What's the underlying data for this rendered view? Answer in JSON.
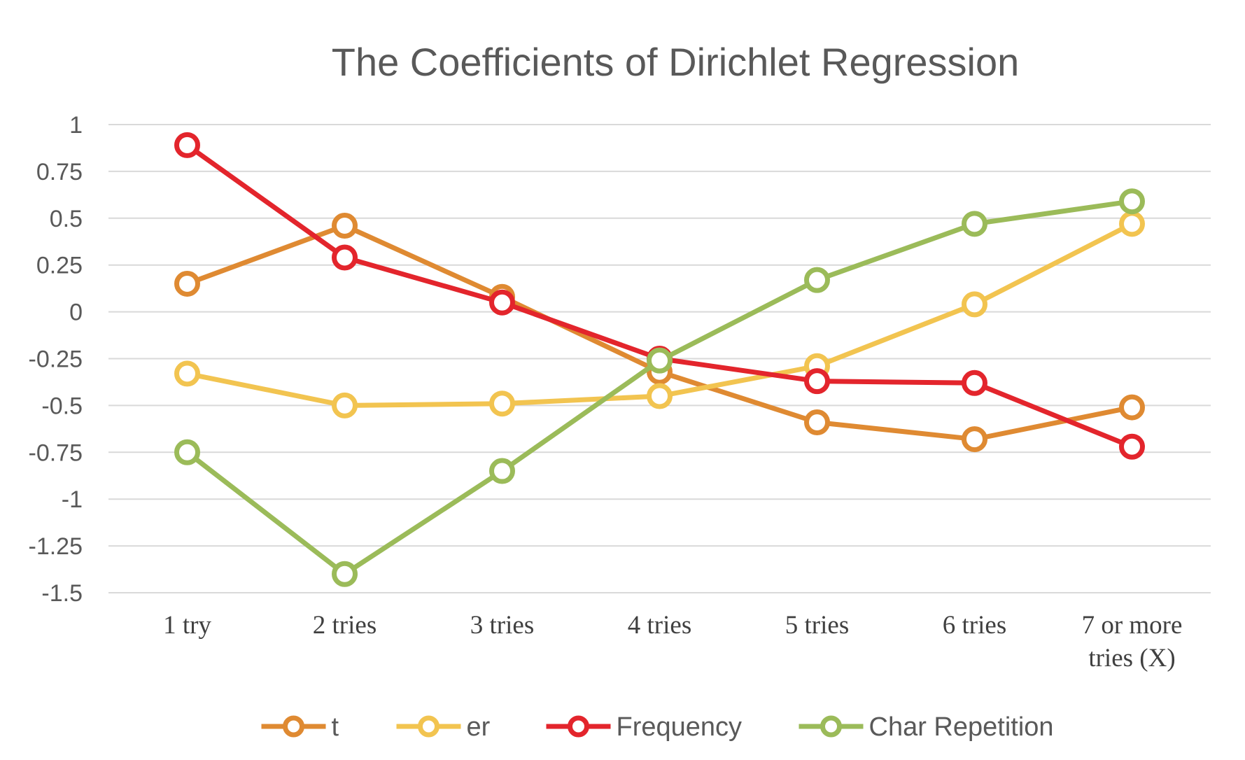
{
  "chart_data": {
    "type": "line",
    "title": "The Coefficients of Dirichlet Regression",
    "xlabel": "",
    "ylabel": "",
    "ylim": [
      -1.5,
      1
    ],
    "yticks": [
      "1",
      "0.75",
      "0.5",
      "0.25",
      "0",
      "-0.25",
      "-0.5",
      "-0.75",
      "-1",
      "-1.25",
      "-1.5"
    ],
    "categories": [
      [
        "1 try"
      ],
      [
        "2 tries"
      ],
      [
        "3 tries"
      ],
      [
        "4 tries"
      ],
      [
        "5 tries"
      ],
      [
        "6 tries"
      ],
      [
        "7 or more",
        "tries (X)"
      ]
    ],
    "grid": true,
    "legend_position": "bottom",
    "series": [
      {
        "name": "t",
        "color": "#DF8A32",
        "values": [
          0.15,
          0.46,
          0.08,
          -0.32,
          -0.59,
          -0.68,
          -0.51
        ]
      },
      {
        "name": "er",
        "color": "#F2C450",
        "values": [
          -0.33,
          -0.5,
          -0.49,
          -0.45,
          -0.29,
          0.04,
          0.47
        ]
      },
      {
        "name": "Frequency",
        "color": "#E3252C",
        "values": [
          0.89,
          0.29,
          0.05,
          -0.25,
          -0.37,
          -0.38,
          -0.72
        ]
      },
      {
        "name": "Char Repetition",
        "color": "#9BBB59",
        "values": [
          -0.75,
          -1.4,
          -0.85,
          -0.26,
          0.17,
          0.47,
          0.59
        ]
      }
    ]
  }
}
